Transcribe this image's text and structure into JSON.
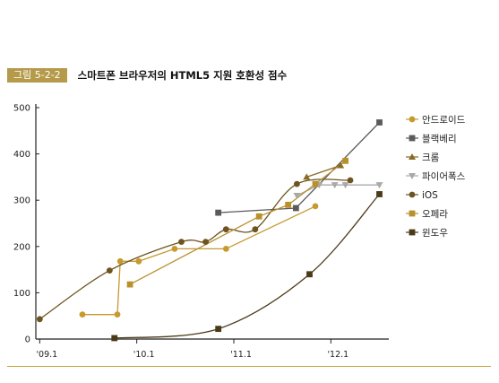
{
  "figure": {
    "label": "그림 5-2-2",
    "title": "스마트폰 브라우저의 HTML5 지원 호환성 점수"
  },
  "chart_data": {
    "type": "line",
    "ylim": [
      0,
      500
    ],
    "y_ticks": [
      0,
      100,
      200,
      300,
      400,
      500
    ],
    "x_ticks": [
      {
        "label": "'09.1",
        "x": 2009.0
      },
      {
        "label": "'10.1",
        "x": 2010.0
      },
      {
        "label": "'11.1",
        "x": 2011.0
      },
      {
        "label": "'12.1",
        "x": 2012.0
      }
    ],
    "xlim": [
      2008.96,
      2012.56
    ],
    "grid": false,
    "legend_position": "right",
    "series": [
      {
        "name": "안드로이드",
        "color": "#c69a2e",
        "marker": "circle",
        "curved": false,
        "points": [
          [
            2009.44,
            53
          ],
          [
            2009.8,
            53
          ],
          [
            2009.83,
            168
          ],
          [
            2010.02,
            168
          ],
          [
            2010.39,
            195
          ],
          [
            2010.92,
            195
          ],
          [
            2011.84,
            287
          ]
        ]
      },
      {
        "name": "블랙베리",
        "color": "#5b5b5b",
        "marker": "square",
        "curved": false,
        "points": [
          [
            2010.84,
            273
          ],
          [
            2011.64,
            283
          ],
          [
            2012.5,
            468
          ]
        ]
      },
      {
        "name": "크롬",
        "color": "#8a6a24",
        "marker": "triangle",
        "curved": false,
        "points": [
          [
            2011.75,
            350
          ],
          [
            2012.1,
            375
          ]
        ]
      },
      {
        "name": "파이어폭스",
        "color": "#a9a9a9",
        "marker": "triangle-down",
        "curved": false,
        "points": [
          [
            2011.65,
            310
          ],
          [
            2011.88,
            333
          ],
          [
            2012.04,
            333
          ],
          [
            2012.15,
            333
          ],
          [
            2012.5,
            333
          ]
        ]
      },
      {
        "name": "iOS",
        "color": "#6e5420",
        "marker": "circle",
        "curved": true,
        "points": [
          [
            2009.0,
            43
          ],
          [
            2009.72,
            148
          ],
          [
            2010.46,
            210
          ],
          [
            2010.71,
            210
          ],
          [
            2010.92,
            237
          ],
          [
            2011.22,
            237
          ],
          [
            2011.65,
            335
          ],
          [
            2012.2,
            343
          ]
        ]
      },
      {
        "name": "오페라",
        "color": "#b9902e",
        "marker": "square",
        "curved": false,
        "points": [
          [
            2009.93,
            118
          ],
          [
            2011.26,
            265
          ],
          [
            2011.56,
            290
          ],
          [
            2011.84,
            335
          ],
          [
            2012.15,
            385
          ]
        ]
      },
      {
        "name": "윈도우",
        "color": "#4b3a18",
        "marker": "square",
        "curved": true,
        "points": [
          [
            2009.77,
            2
          ],
          [
            2010.84,
            22
          ],
          [
            2011.78,
            140
          ],
          [
            2012.5,
            313
          ]
        ]
      }
    ]
  }
}
